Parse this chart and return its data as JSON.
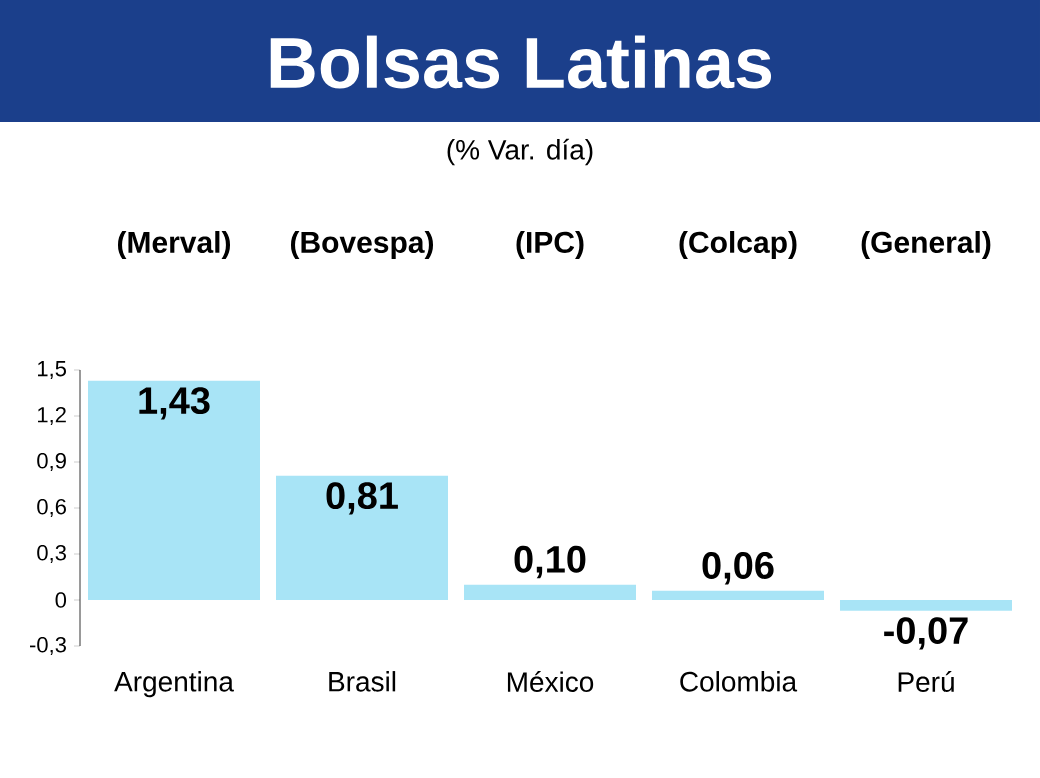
{
  "chart_data": {
    "type": "bar",
    "title": "Bolsas Latinas",
    "subtitle": "(% Var. día)",
    "categories": [
      "Argentina",
      "Brasil",
      "México",
      "Colombia",
      "Perú"
    ],
    "values": [
      1.43,
      0.81,
      0.1,
      0.06,
      -0.07
    ],
    "value_labels": [
      "1,43",
      "0,81",
      "0,10",
      "0,06",
      "-0,07"
    ],
    "color": "#a8e4f6",
    "ylim": [
      -0.3,
      1.5
    ],
    "yticks": [
      {
        "value": -0.3,
        "label": "-0,3"
      },
      {
        "value": 0,
        "label": "0"
      },
      {
        "value": 0.3,
        "label": "0,3"
      },
      {
        "value": 0.6,
        "label": "0,6"
      },
      {
        "value": 0.9,
        "label": "0,9"
      },
      {
        "value": 1.2,
        "label": "1,2"
      },
      {
        "value": 1.5,
        "label": "1,5"
      }
    ],
    "annotations": [
      "(Merval)",
      "(Bovespa)",
      "(IPC)",
      "(Colcap)",
      "(General)"
    ]
  }
}
